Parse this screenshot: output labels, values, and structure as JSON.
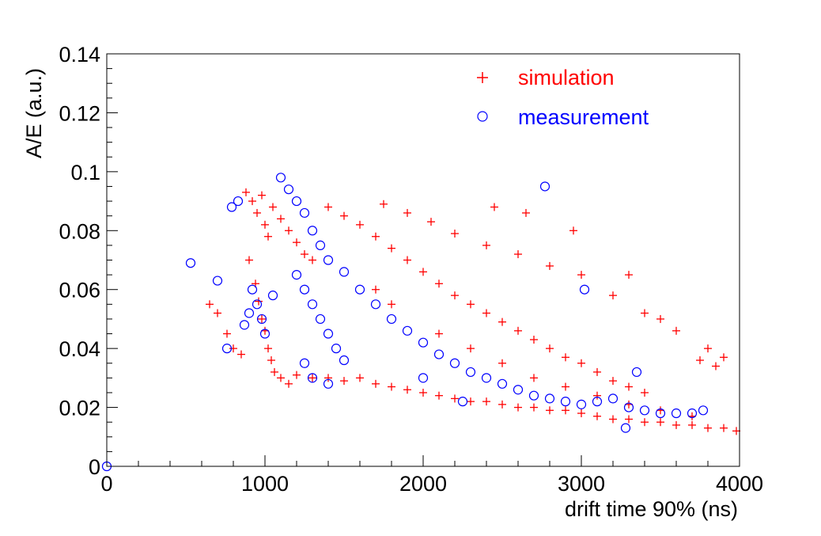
{
  "chart_data": {
    "type": "scatter",
    "title": "",
    "xlabel": "drift time 90% (ns)",
    "ylabel": "A/E (a.u.)",
    "xlim": [
      0,
      4000
    ],
    "ylim": [
      0,
      0.14
    ],
    "x_ticks": [
      "0",
      "1000",
      "2000",
      "3000",
      "4000"
    ],
    "y_ticks": [
      "0",
      "0.02",
      "0.04",
      "0.06",
      "0.08",
      "0.1",
      "0.12",
      "0.14"
    ],
    "grid": false,
    "legend_position": "top-right",
    "series": [
      {
        "name": "simulation",
        "marker": "plus",
        "color": "#ff0000",
        "points": [
          [
            880,
            0.093
          ],
          [
            920,
            0.09
          ],
          [
            950,
            0.086
          ],
          [
            980,
            0.092
          ],
          [
            1000,
            0.082
          ],
          [
            1020,
            0.078
          ],
          [
            1050,
            0.088
          ],
          [
            1100,
            0.084
          ],
          [
            1150,
            0.08
          ],
          [
            1200,
            0.076
          ],
          [
            1250,
            0.072
          ],
          [
            1300,
            0.07
          ],
          [
            900,
            0.07
          ],
          [
            940,
            0.062
          ],
          [
            960,
            0.056
          ],
          [
            980,
            0.05
          ],
          [
            1000,
            0.046
          ],
          [
            1020,
            0.04
          ],
          [
            1040,
            0.036
          ],
          [
            1060,
            0.032
          ],
          [
            1100,
            0.03
          ],
          [
            1150,
            0.028
          ],
          [
            1200,
            0.031
          ],
          [
            1300,
            0.03
          ],
          [
            1400,
            0.03
          ],
          [
            1500,
            0.029
          ],
          [
            1600,
            0.03
          ],
          [
            1700,
            0.028
          ],
          [
            1800,
            0.027
          ],
          [
            1900,
            0.026
          ],
          [
            2000,
            0.025
          ],
          [
            2100,
            0.024
          ],
          [
            2200,
            0.023
          ],
          [
            2300,
            0.022
          ],
          [
            2400,
            0.022
          ],
          [
            2500,
            0.021
          ],
          [
            2600,
            0.02
          ],
          [
            2700,
            0.02
          ],
          [
            2800,
            0.019
          ],
          [
            2900,
            0.019
          ],
          [
            3000,
            0.018
          ],
          [
            3100,
            0.017
          ],
          [
            3200,
            0.016
          ],
          [
            3300,
            0.016
          ],
          [
            3400,
            0.015
          ],
          [
            3500,
            0.015
          ],
          [
            3600,
            0.014
          ],
          [
            3700,
            0.014
          ],
          [
            3800,
            0.013
          ],
          [
            3900,
            0.013
          ],
          [
            3980,
            0.012
          ],
          [
            1400,
            0.088
          ],
          [
            1500,
            0.085
          ],
          [
            1600,
            0.082
          ],
          [
            1700,
            0.078
          ],
          [
            1800,
            0.074
          ],
          [
            1900,
            0.07
          ],
          [
            2000,
            0.066
          ],
          [
            2100,
            0.062
          ],
          [
            2200,
            0.058
          ],
          [
            2300,
            0.055
          ],
          [
            2400,
            0.052
          ],
          [
            2500,
            0.049
          ],
          [
            2600,
            0.046
          ],
          [
            2700,
            0.043
          ],
          [
            2800,
            0.04
          ],
          [
            2900,
            0.037
          ],
          [
            3000,
            0.035
          ],
          [
            3100,
            0.032
          ],
          [
            3200,
            0.029
          ],
          [
            3300,
            0.027
          ],
          [
            3400,
            0.025
          ],
          [
            1750,
            0.089
          ],
          [
            1900,
            0.086
          ],
          [
            2050,
            0.083
          ],
          [
            2200,
            0.079
          ],
          [
            2400,
            0.075
          ],
          [
            2600,
            0.072
          ],
          [
            2800,
            0.068
          ],
          [
            3000,
            0.065
          ],
          [
            3200,
            0.058
          ],
          [
            3400,
            0.052
          ],
          [
            3600,
            0.046
          ],
          [
            3800,
            0.04
          ],
          [
            2450,
            0.088
          ],
          [
            2650,
            0.086
          ],
          [
            2950,
            0.08
          ],
          [
            3300,
            0.065
          ],
          [
            3500,
            0.05
          ],
          [
            3750,
            0.036
          ],
          [
            3900,
            0.037
          ],
          [
            3850,
            0.034
          ],
          [
            700,
            0.052
          ],
          [
            650,
            0.055
          ],
          [
            760,
            0.045
          ],
          [
            800,
            0.04
          ],
          [
            850,
            0.038
          ],
          [
            1700,
            0.06
          ],
          [
            1800,
            0.055
          ],
          [
            2100,
            0.045
          ],
          [
            2300,
            0.04
          ],
          [
            2500,
            0.035
          ],
          [
            2700,
            0.03
          ],
          [
            2900,
            0.027
          ],
          [
            3100,
            0.024
          ],
          [
            3300,
            0.021
          ],
          [
            3500,
            0.019
          ],
          [
            3700,
            0.017
          ]
        ]
      },
      {
        "name": "measurement",
        "marker": "open-circle",
        "color": "#0000ff",
        "points": [
          [
            0,
            0.0
          ],
          [
            530,
            0.069
          ],
          [
            700,
            0.063
          ],
          [
            760,
            0.04
          ],
          [
            790,
            0.088
          ],
          [
            830,
            0.09
          ],
          [
            870,
            0.048
          ],
          [
            900,
            0.052
          ],
          [
            920,
            0.06
          ],
          [
            950,
            0.055
          ],
          [
            980,
            0.05
          ],
          [
            1000,
            0.045
          ],
          [
            1050,
            0.058
          ],
          [
            1100,
            0.098
          ],
          [
            1150,
            0.094
          ],
          [
            1200,
            0.09
          ],
          [
            1250,
            0.086
          ],
          [
            1300,
            0.08
          ],
          [
            1350,
            0.075
          ],
          [
            1400,
            0.07
          ],
          [
            1200,
            0.065
          ],
          [
            1250,
            0.06
          ],
          [
            1300,
            0.055
          ],
          [
            1350,
            0.05
          ],
          [
            1400,
            0.045
          ],
          [
            1450,
            0.04
          ],
          [
            1500,
            0.036
          ],
          [
            1250,
            0.035
          ],
          [
            1300,
            0.03
          ],
          [
            1400,
            0.028
          ],
          [
            1500,
            0.066
          ],
          [
            1600,
            0.06
          ],
          [
            1700,
            0.055
          ],
          [
            1800,
            0.05
          ],
          [
            1900,
            0.046
          ],
          [
            2000,
            0.042
          ],
          [
            2100,
            0.038
          ],
          [
            2200,
            0.035
          ],
          [
            2300,
            0.032
          ],
          [
            2400,
            0.03
          ],
          [
            2500,
            0.028
          ],
          [
            2600,
            0.026
          ],
          [
            2700,
            0.024
          ],
          [
            2800,
            0.023
          ],
          [
            2900,
            0.022
          ],
          [
            3000,
            0.021
          ],
          [
            3100,
            0.022
          ],
          [
            3200,
            0.023
          ],
          [
            3300,
            0.02
          ],
          [
            3400,
            0.019
          ],
          [
            3500,
            0.018
          ],
          [
            3600,
            0.018
          ],
          [
            3700,
            0.018
          ],
          [
            3770,
            0.019
          ],
          [
            2770,
            0.095
          ],
          [
            3020,
            0.06
          ],
          [
            3350,
            0.032
          ],
          [
            3280,
            0.013
          ],
          [
            2250,
            0.022
          ],
          [
            2000,
            0.03
          ]
        ]
      }
    ]
  }
}
